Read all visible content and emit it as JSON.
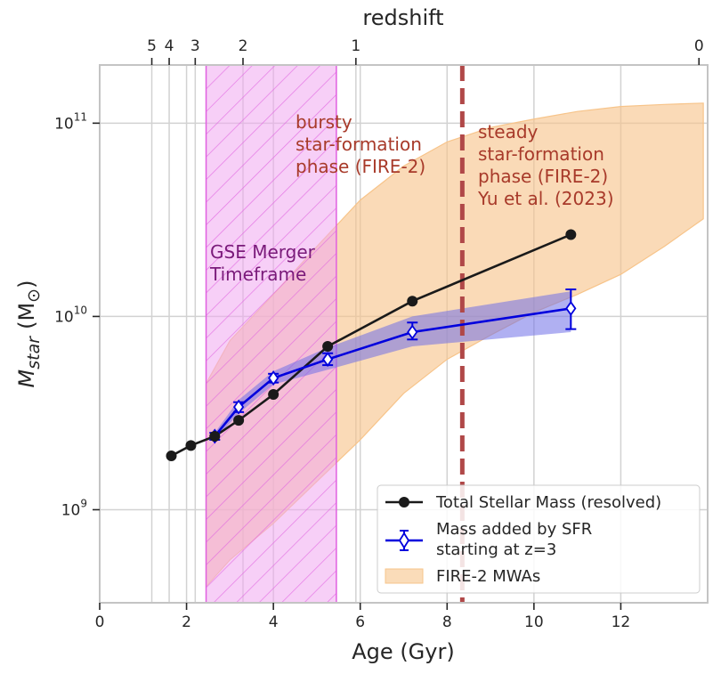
{
  "chart_data": {
    "type": "line",
    "xlabel": "Age (Gyr)",
    "ylabel": "M",
    "ylabel_sub": "star",
    "ylabel_unit": "(M",
    "ylabel_unit_sub": "⊙",
    "ylabel_unit_close": ")",
    "top_axis_label": "redshift",
    "xlim": [
      0,
      14
    ],
    "ylim": [
      330000000.0,
      200000000000.0
    ],
    "yscale": "log",
    "grid": true,
    "xticks": [
      0,
      2,
      4,
      6,
      8,
      10,
      12
    ],
    "xtick_labels": [
      "0",
      "2",
      "4",
      "6",
      "8",
      "10",
      "12"
    ],
    "yticks": [
      1000000000.0,
      10000000000.0,
      100000000000.0
    ],
    "ytick_bases": [
      "10",
      "10",
      "10"
    ],
    "ytick_exps": [
      "9",
      "10",
      "11"
    ],
    "top_ticks": [
      {
        "age": 1.2,
        "label": "5"
      },
      {
        "age": 1.6,
        "label": "4"
      },
      {
        "age": 2.2,
        "label": "3"
      },
      {
        "age": 3.3,
        "label": "2"
      },
      {
        "age": 5.9,
        "label": "1"
      },
      {
        "age": 13.8,
        "label": "0"
      }
    ],
    "vertical_gridlines": [
      1.2,
      1.6,
      2.2,
      3.3,
      5.9
    ],
    "gse_span": {
      "x0": 2.45,
      "x1": 5.45
    },
    "transition_age": 8.35,
    "series": [
      {
        "name": "Total Stellar Mass (resolved)",
        "x": [
          1.65,
          2.1,
          2.65,
          3.2,
          4.0,
          5.25,
          7.2,
          10.85
        ],
        "y": [
          1900000000.0,
          2150000000.0,
          2400000000.0,
          2900000000.0,
          3950000000.0,
          7000000000.0,
          12000000000.0,
          26500000000.0
        ]
      },
      {
        "name": "Mass added by SFR\nstarting at z=3",
        "name_lines": [
          "Mass added by SFR",
          "starting at z=3"
        ],
        "x": [
          2.65,
          3.2,
          4.0,
          5.25,
          7.2,
          10.85
        ],
        "y": [
          2400000000.0,
          3400000000.0,
          4800000000.0,
          6000000000.0,
          8300000000.0,
          11000000000.0
        ],
        "yerr_low": [
          2300000000.0,
          3200000000.0,
          4550000000.0,
          5600000000.0,
          7600000000.0,
          8600000000.0
        ],
        "yerr_high": [
          2500000000.0,
          3600000000.0,
          5050000000.0,
          6450000000.0,
          9300000000.0,
          13800000000.0
        ],
        "band_x": [
          2.65,
          3.2,
          4.0,
          5.25,
          7.2,
          10.85
        ],
        "band_low": [
          2300000000.0,
          3150000000.0,
          4450000000.0,
          5300000000.0,
          7000000000.0,
          8300000000.0
        ],
        "band_high": [
          2500000000.0,
          3700000000.0,
          5200000000.0,
          6900000000.0,
          10000000000.0,
          13500000000.0
        ]
      },
      {
        "name": "FIRE-2 MWAs",
        "x": [
          2.45,
          3.0,
          4.0,
          5.0,
          6.0,
          7.0,
          8.0,
          9.0,
          10.0,
          11.0,
          12.0,
          13.0,
          13.9
        ],
        "y_low": [
          400000000.0,
          550000000.0,
          850000000.0,
          1400000000.0,
          2300000000.0,
          4000000000.0,
          6000000000.0,
          8000000000.0,
          10500000000.0,
          13000000000.0,
          16500000000.0,
          23000000000.0,
          32000000000.0
        ],
        "y_high": [
          4500000000.0,
          7500000000.0,
          13000000000.0,
          23000000000.0,
          40000000000.0,
          60000000000.0,
          80000000000.0,
          95000000000.0,
          105000000000.0,
          115000000000.0,
          122000000000.0,
          125000000000.0,
          127000000000.0
        ]
      }
    ],
    "annotations": {
      "gse": [
        "GSE Merger",
        "Timeframe"
      ],
      "bursty": [
        "bursty",
        "star-formation",
        "phase (FIRE-2)"
      ],
      "steady": [
        "steady",
        "star-formation",
        "phase (FIRE-2)",
        "Yu et al. (2023)"
      ]
    },
    "legend_position": "lower-right"
  },
  "colors": {
    "total": "#1a1a1a",
    "sfr_line": "#0000dd",
    "sfr_band": "#6f6fe8",
    "fire_band": "#f7c48a",
    "gse_fill": "#f0a8f0",
    "gse_edge": "#e060e0",
    "dashed": "#b04848",
    "anno_red": "#a83a2a",
    "anno_purple": "#7a1a7a",
    "grid": "#d2d2d2"
  }
}
